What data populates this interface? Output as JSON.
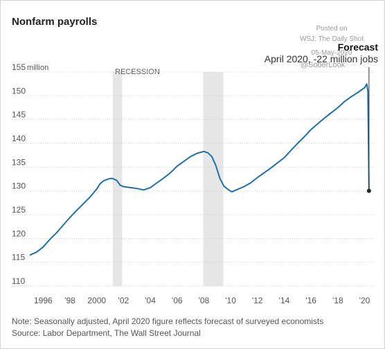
{
  "chart_data": {
    "type": "line",
    "title": "Nonfarm payrolls",
    "ylabel_unit": "million",
    "ylim": [
      110,
      155
    ],
    "yticks": [
      110,
      115,
      120,
      125,
      130,
      135,
      140,
      145,
      150,
      155
    ],
    "xlim": [
      1995.0,
      2020.75
    ],
    "xticks": [
      {
        "x": 1996,
        "label": "1996"
      },
      {
        "x": 1998,
        "label": "'98"
      },
      {
        "x": 2000,
        "label": "2000"
      },
      {
        "x": 2002,
        "label": "'02"
      },
      {
        "x": 2004,
        "label": "'04"
      },
      {
        "x": 2006,
        "label": "'06"
      },
      {
        "x": 2008,
        "label": "'08"
      },
      {
        "x": 2010,
        "label": "'10"
      },
      {
        "x": 2012,
        "label": "'12"
      },
      {
        "x": 2014,
        "label": "'14"
      },
      {
        "x": 2016,
        "label": "'16"
      },
      {
        "x": 2018,
        "label": "'18"
      },
      {
        "x": 2020,
        "label": "'20"
      }
    ],
    "recessions": [
      {
        "start": 2001.2,
        "end": 2001.9
      },
      {
        "start": 2007.95,
        "end": 2009.45
      }
    ],
    "recession_label": "RECESSION",
    "series": [
      {
        "color": "#1f6fa3",
        "points": [
          [
            1995.0,
            116.5
          ],
          [
            1995.5,
            117.1
          ],
          [
            1996.0,
            118.2
          ],
          [
            1996.5,
            119.8
          ],
          [
            1997.0,
            121.2
          ],
          [
            1997.5,
            122.8
          ],
          [
            1998.0,
            124.4
          ],
          [
            1998.5,
            125.9
          ],
          [
            1999.0,
            127.3
          ],
          [
            1999.5,
            128.7
          ],
          [
            2000.0,
            130.4
          ],
          [
            2000.25,
            131.5
          ],
          [
            2000.5,
            132.1
          ],
          [
            2000.75,
            132.4
          ],
          [
            2001.0,
            132.6
          ],
          [
            2001.2,
            132.6
          ],
          [
            2001.5,
            132.2
          ],
          [
            2001.75,
            131.2
          ],
          [
            2002.0,
            130.9
          ],
          [
            2002.5,
            130.7
          ],
          [
            2003.0,
            130.5
          ],
          [
            2003.5,
            130.2
          ],
          [
            2004.0,
            130.7
          ],
          [
            2004.5,
            131.7
          ],
          [
            2005.0,
            132.7
          ],
          [
            2005.5,
            133.8
          ],
          [
            2006.0,
            135.2
          ],
          [
            2006.5,
            136.2
          ],
          [
            2007.0,
            137.2
          ],
          [
            2007.5,
            137.9
          ],
          [
            2008.0,
            138.3
          ],
          [
            2008.3,
            138.0
          ],
          [
            2008.6,
            137.2
          ],
          [
            2008.9,
            135.3
          ],
          [
            2009.2,
            132.6
          ],
          [
            2009.5,
            131.0
          ],
          [
            2009.9,
            130.1
          ],
          [
            2010.1,
            129.8
          ],
          [
            2010.5,
            130.3
          ],
          [
            2011.0,
            130.9
          ],
          [
            2011.5,
            131.7
          ],
          [
            2012.0,
            132.8
          ],
          [
            2012.5,
            133.8
          ],
          [
            2013.0,
            134.8
          ],
          [
            2013.5,
            135.9
          ],
          [
            2014.0,
            137.0
          ],
          [
            2014.5,
            138.5
          ],
          [
            2015.0,
            140.0
          ],
          [
            2015.5,
            141.4
          ],
          [
            2016.0,
            142.9
          ],
          [
            2016.5,
            144.1
          ],
          [
            2017.0,
            145.3
          ],
          [
            2017.5,
            146.4
          ],
          [
            2018.0,
            147.5
          ],
          [
            2018.5,
            148.8
          ],
          [
            2019.0,
            149.8
          ],
          [
            2019.5,
            150.7
          ],
          [
            2020.0,
            151.7
          ],
          [
            2020.16,
            152.5
          ],
          [
            2020.25,
            151.0
          ],
          [
            2020.33,
            130.0
          ]
        ]
      }
    ],
    "forecast_marker": {
      "x": 2020.33,
      "y": 130.0
    },
    "annotations": {
      "forecast_title": "Forecast",
      "forecast_text": "April 2020, -22 million jobs"
    },
    "watermark": [
      "Posted on",
      "WSJ: The Daily Shot",
      "05-May-2020",
      "@SoberLook"
    ],
    "notes": [
      "Note: Seasonally adjusted, April 2020 figure reflects forecast of surveyed economists",
      "Source: Labor Department, The Wall Street Journal"
    ]
  }
}
